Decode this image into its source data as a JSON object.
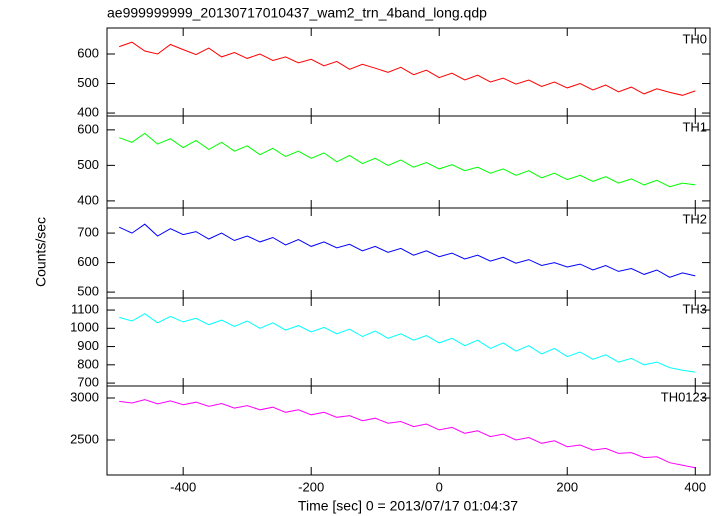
{
  "title": "ae999999999_20130717010437_wam2_trn_4band_long.qdp",
  "xlabel": "Time [sec] 0 = 2013/07/17 01:04:37",
  "ylabel": "Counts/sec",
  "chart_data": [
    {
      "type": "line",
      "xlim": [
        -519,
        423
      ],
      "xticks": [
        -400,
        -200,
        0,
        200,
        400
      ],
      "ylim": [
        390,
        688
      ],
      "yticks": [
        400,
        500,
        600
      ],
      "x": [
        -500,
        -480,
        -460,
        -440,
        -420,
        -400,
        -380,
        -360,
        -340,
        -320,
        -300,
        -280,
        -260,
        -240,
        -220,
        -200,
        -180,
        -160,
        -140,
        -120,
        -100,
        -80,
        -60,
        -40,
        -20,
        0,
        20,
        40,
        60,
        80,
        100,
        120,
        140,
        160,
        180,
        200,
        220,
        240,
        260,
        280,
        300,
        320,
        340,
        360,
        380,
        400
      ],
      "series": [
        {
          "name": "TH0",
          "color": "#ff0000",
          "values": [
            625,
            640,
            610,
            600,
            632,
            615,
            598,
            620,
            590,
            605,
            585,
            600,
            578,
            590,
            570,
            582,
            560,
            575,
            548,
            565,
            552,
            538,
            555,
            530,
            545,
            520,
            535,
            512,
            528,
            505,
            518,
            498,
            512,
            490,
            505,
            485,
            500,
            478,
            495,
            472,
            488,
            465,
            482,
            470,
            460,
            475
          ]
        }
      ]
    },
    {
      "type": "line",
      "xlim": [
        -519,
        423
      ],
      "xticks": [
        -400,
        -200,
        0,
        200,
        400
      ],
      "ylim": [
        380,
        639
      ],
      "yticks": [
        400,
        500,
        600
      ],
      "x": [
        -500,
        -480,
        -460,
        -440,
        -420,
        -400,
        -380,
        -360,
        -340,
        -320,
        -300,
        -280,
        -260,
        -240,
        -220,
        -200,
        -180,
        -160,
        -140,
        -120,
        -100,
        -80,
        -60,
        -40,
        -20,
        0,
        20,
        40,
        60,
        80,
        100,
        120,
        140,
        160,
        180,
        200,
        220,
        240,
        260,
        280,
        300,
        320,
        340,
        360,
        380,
        400
      ],
      "series": [
        {
          "name": "TH1",
          "color": "#00ff00",
          "values": [
            578,
            565,
            590,
            560,
            575,
            550,
            570,
            545,
            565,
            540,
            555,
            530,
            548,
            525,
            540,
            520,
            535,
            510,
            528,
            505,
            520,
            500,
            515,
            495,
            508,
            490,
            502,
            485,
            495,
            478,
            490,
            472,
            485,
            465,
            478,
            460,
            472,
            455,
            468,
            450,
            462,
            445,
            458,
            440,
            450,
            445
          ]
        }
      ]
    },
    {
      "type": "line",
      "xlim": [
        -519,
        423
      ],
      "xticks": [
        -400,
        -200,
        0,
        200,
        400
      ],
      "ylim": [
        480,
        785
      ],
      "yticks": [
        500,
        600,
        700
      ],
      "x": [
        -500,
        -480,
        -460,
        -440,
        -420,
        -400,
        -380,
        -360,
        -340,
        -320,
        -300,
        -280,
        -260,
        -240,
        -220,
        -200,
        -180,
        -160,
        -140,
        -120,
        -100,
        -80,
        -60,
        -40,
        -20,
        0,
        20,
        40,
        60,
        80,
        100,
        120,
        140,
        160,
        180,
        200,
        220,
        240,
        260,
        280,
        300,
        320,
        340,
        360,
        380,
        400
      ],
      "series": [
        {
          "name": "TH2",
          "color": "#0000ff",
          "values": [
            720,
            700,
            730,
            690,
            715,
            695,
            705,
            680,
            700,
            675,
            690,
            670,
            685,
            660,
            678,
            655,
            670,
            650,
            662,
            640,
            655,
            635,
            648,
            625,
            640,
            620,
            632,
            612,
            625,
            605,
            618,
            598,
            610,
            590,
            600,
            585,
            595,
            575,
            590,
            570,
            580,
            560,
            575,
            550,
            565,
            555
          ]
        }
      ]
    },
    {
      "type": "line",
      "xlim": [
        -519,
        423
      ],
      "xticks": [
        -400,
        -200,
        0,
        200,
        400
      ],
      "ylim": [
        684,
        1166
      ],
      "yticks": [
        700,
        800,
        900,
        1000,
        1100
      ],
      "x": [
        -500,
        -480,
        -460,
        -440,
        -420,
        -400,
        -380,
        -360,
        -340,
        -320,
        -300,
        -280,
        -260,
        -240,
        -220,
        -200,
        -180,
        -160,
        -140,
        -120,
        -100,
        -80,
        -60,
        -40,
        -20,
        0,
        20,
        40,
        60,
        80,
        100,
        120,
        140,
        160,
        180,
        200,
        220,
        240,
        260,
        280,
        300,
        320,
        340,
        360,
        380,
        400
      ],
      "series": [
        {
          "name": "TH3",
          "color": "#00ffff",
          "values": [
            1060,
            1040,
            1080,
            1030,
            1065,
            1035,
            1055,
            1020,
            1045,
            1010,
            1040,
            1000,
            1030,
            990,
            1015,
            980,
            1005,
            970,
            995,
            955,
            985,
            945,
            970,
            935,
            960,
            920,
            945,
            905,
            935,
            890,
            920,
            875,
            905,
            860,
            890,
            845,
            870,
            830,
            855,
            815,
            835,
            800,
            815,
            785,
            770,
            760
          ]
        }
      ]
    },
    {
      "type": "line",
      "xlim": [
        -519,
        423
      ],
      "xticks": [
        -400,
        -200,
        0,
        200,
        400
      ],
      "ylim": [
        2083,
        3143
      ],
      "yticks": [
        2500,
        3000
      ],
      "x": [
        -500,
        -480,
        -460,
        -440,
        -420,
        -400,
        -380,
        -360,
        -340,
        -320,
        -300,
        -280,
        -260,
        -240,
        -220,
        -200,
        -180,
        -160,
        -140,
        -120,
        -100,
        -80,
        -60,
        -40,
        -20,
        0,
        20,
        40,
        60,
        80,
        100,
        120,
        140,
        160,
        180,
        200,
        220,
        240,
        260,
        280,
        300,
        320,
        340,
        360,
        380,
        400
      ],
      "series": [
        {
          "name": "TH0123",
          "color": "#ff00ff",
          "values": [
            2960,
            2940,
            2980,
            2930,
            2965,
            2920,
            2950,
            2900,
            2935,
            2880,
            2910,
            2860,
            2890,
            2830,
            2860,
            2800,
            2830,
            2770,
            2790,
            2730,
            2760,
            2700,
            2720,
            2660,
            2690,
            2620,
            2650,
            2580,
            2610,
            2540,
            2570,
            2500,
            2530,
            2460,
            2490,
            2420,
            2440,
            2380,
            2400,
            2340,
            2350,
            2290,
            2300,
            2230,
            2200,
            2170
          ]
        }
      ]
    }
  ]
}
